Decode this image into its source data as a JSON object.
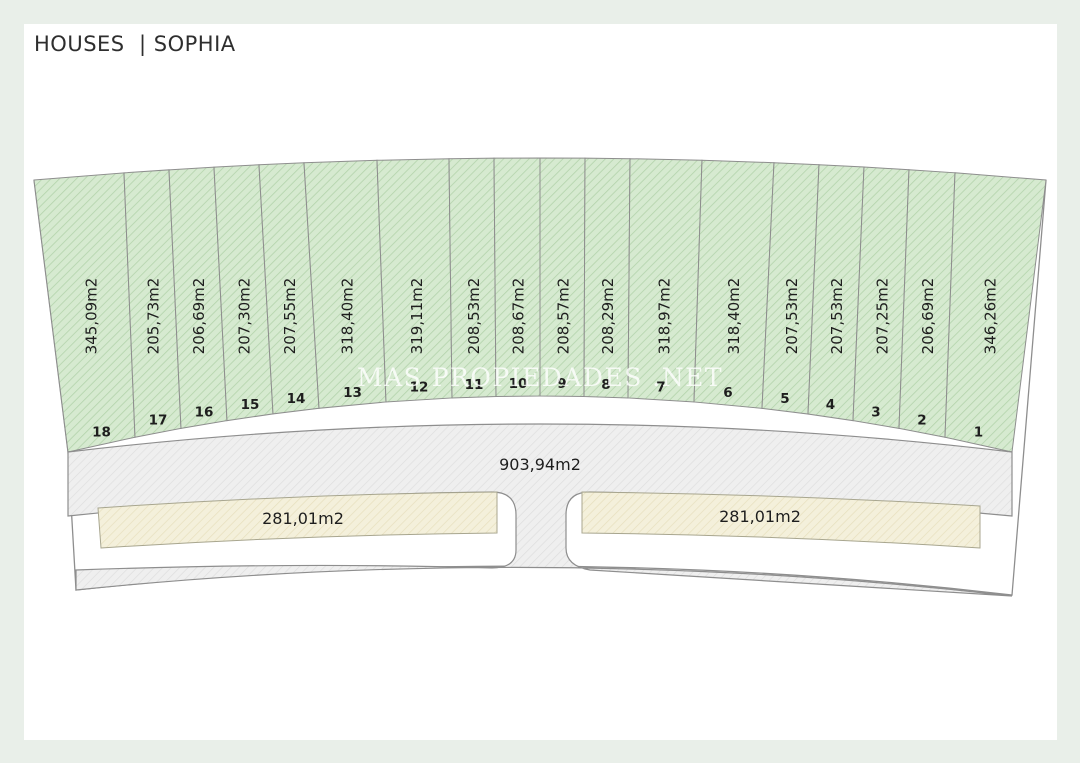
{
  "title": {
    "left": "HOUSES",
    "separator": "|",
    "right": "SOPHIA"
  },
  "watermark": "MAS PROPIEDADES .NET",
  "plots": [
    {
      "number": "18",
      "area": "345,09m2"
    },
    {
      "number": "17",
      "area": "205,73m2"
    },
    {
      "number": "16",
      "area": "206,69m2"
    },
    {
      "number": "15",
      "area": "207,30m2"
    },
    {
      "number": "14",
      "area": "207,55m2"
    },
    {
      "number": "13",
      "area": "318,40m2"
    },
    {
      "number": "12",
      "area": "319,11m2"
    },
    {
      "number": "11",
      "area": "208,53m2"
    },
    {
      "number": "10",
      "area": "208,67m2"
    },
    {
      "number": "9",
      "area": "208,57m2"
    },
    {
      "number": "8",
      "area": "208,29m2"
    },
    {
      "number": "7",
      "area": "318,97m2"
    },
    {
      "number": "6",
      "area": "318,40m2"
    },
    {
      "number": "5",
      "area": "207,53m2"
    },
    {
      "number": "4",
      "area": "207,53m2"
    },
    {
      "number": "3",
      "area": "207,25m2"
    },
    {
      "number": "2",
      "area": "206,69m2"
    },
    {
      "number": "1",
      "area": "346,26m2"
    }
  ],
  "road": {
    "area": "903,94m2"
  },
  "communal_left": {
    "area": "281,01m2"
  },
  "communal_right": {
    "area": "281,01m2"
  },
  "colors": {
    "plot_fill": "#d6ead0",
    "plot_hatch": "#a9cda1",
    "road_fill": "#eeeeee",
    "communal_fill": "#f3efd9",
    "outline": "#8a8a8a"
  }
}
